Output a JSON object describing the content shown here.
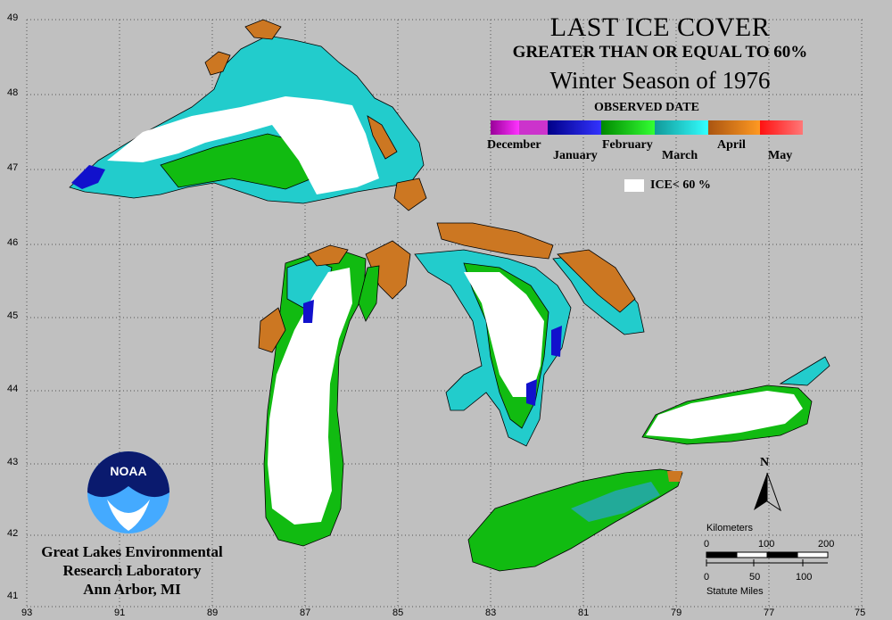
{
  "title": {
    "line1": "LAST ICE COVER",
    "line2": "GREATER THAN OR EQUAL TO 60%",
    "line3": "Winter Season of 1976"
  },
  "legend": {
    "title": "OBSERVED DATE",
    "months": [
      "December",
      "January",
      "February",
      "March",
      "April",
      "May"
    ],
    "ice_label": "ICE< 60 %"
  },
  "colors": {
    "background": "#c0c0c0",
    "ice_lt_60": "#ffffff",
    "december": "#cc33cc",
    "january": "#1111cc",
    "february": "#11bb11",
    "march": "#22cccc",
    "april": "#cc7722",
    "may": "#ff4444",
    "land_outline": "#000000"
  },
  "axes": {
    "latitudes": [
      "49",
      "48",
      "47",
      "46",
      "45",
      "44",
      "43",
      "42",
      "41"
    ],
    "longitudes": [
      "93",
      "91",
      "89",
      "87",
      "85",
      "83",
      "81",
      "79",
      "77",
      "75"
    ]
  },
  "logo": {
    "text": "NOAA"
  },
  "credit": {
    "line1": "Great Lakes Environmental",
    "line2": "Research Laboratory",
    "line3": "Ann Arbor, MI"
  },
  "north_label": "N",
  "scale": {
    "km_label": "Kilometers",
    "km_ticks": [
      "0",
      "100",
      "200"
    ],
    "mi_ticks": [
      "0",
      "50",
      "100"
    ],
    "mi_label": "Statute Miles"
  }
}
